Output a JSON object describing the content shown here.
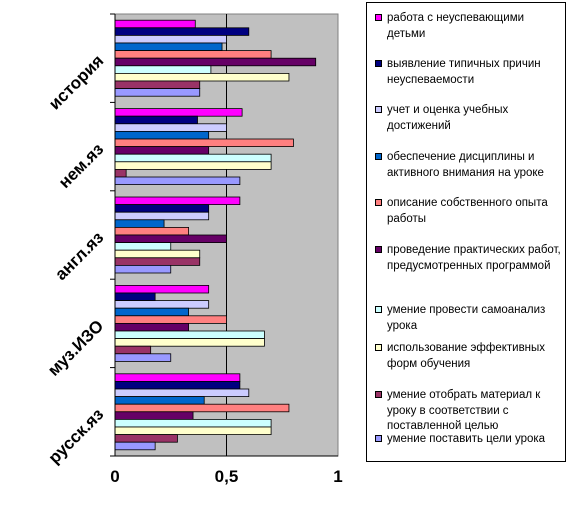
{
  "chart_data": {
    "type": "bar",
    "orientation": "horizontal",
    "categories": [
      "история",
      "нем.яз",
      "англ.яз",
      "муз.ИЗО",
      "русск.яз"
    ],
    "x_ticks": [
      "0",
      "0,5",
      "1"
    ],
    "xlim": [
      0,
      1
    ],
    "grid": "vertical at 0.5",
    "background": "#c0c0c0",
    "legend_position": "right",
    "series": [
      {
        "name": "работа с неуспевающими детьми",
        "color": "#ff00ff",
        "values": [
          0.36,
          0.57,
          0.56,
          0.42,
          0.56
        ]
      },
      {
        "name": "выявление типичных причин неуспеваемости",
        "color": "#000080",
        "values": [
          0.6,
          0.37,
          0.42,
          0.18,
          0.56
        ]
      },
      {
        "name": "учет и оценка учебных достижений",
        "color": "#ccccff",
        "values": [
          0.5,
          0.5,
          0.42,
          0.42,
          0.6
        ]
      },
      {
        "name": "обеспечение дисциплины и активного внимания на уроке",
        "color": "#0066cc",
        "values": [
          0.48,
          0.42,
          0.22,
          0.33,
          0.4
        ]
      },
      {
        "name": "описание собственного опыта работы",
        "color": "#ff8080",
        "values": [
          0.7,
          0.8,
          0.33,
          0.5,
          0.78
        ]
      },
      {
        "name": "проведение практических работ, предусмотренных программой",
        "color": "#660066",
        "values": [
          0.9,
          0.42,
          0.5,
          0.33,
          0.35
        ]
      },
      {
        "name": "умение провести самоанализ урока",
        "color": "#ccffff",
        "values": [
          0.43,
          0.7,
          0.25,
          0.67,
          0.7
        ]
      },
      {
        "name": "использование эффективных форм обучения",
        "color": "#ffffcc",
        "values": [
          0.78,
          0.7,
          0.38,
          0.67,
          0.7
        ]
      },
      {
        "name": "умение отобрать материал к уроку в соответствии с поставленной целью",
        "color": "#993366",
        "values": [
          0.38,
          0.05,
          0.38,
          0.16,
          0.28
        ]
      },
      {
        "name": "умение поставить цели урока",
        "color": "#9999ff",
        "values": [
          0.38,
          0.56,
          0.25,
          0.25,
          0.18
        ]
      }
    ]
  }
}
